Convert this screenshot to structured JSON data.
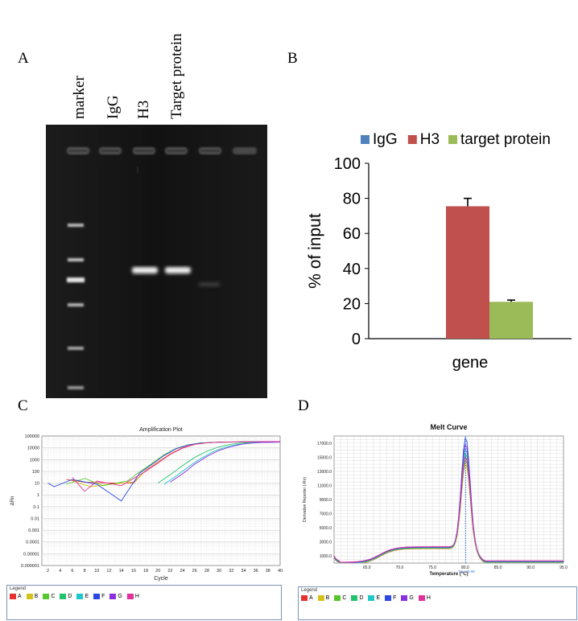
{
  "panels": {
    "a": "A",
    "b": "B",
    "c": "C",
    "d": "D"
  },
  "gel": {
    "lane_labels": [
      "marker",
      "IgG",
      "H3",
      "Target protein"
    ],
    "background": "#141414"
  },
  "chart_data": [
    {
      "type": "bar",
      "panel": "B",
      "categories": [
        "gene"
      ],
      "series": [
        {
          "name": "IgG",
          "values": [
            0
          ],
          "error": [
            0
          ],
          "color": "#4f81bd"
        },
        {
          "name": "H3",
          "values": [
            75.5
          ],
          "error": [
            4.5
          ],
          "color": "#c0504d"
        },
        {
          "name": "target protein",
          "values": [
            21
          ],
          "error": [
            1
          ],
          "color": "#9bbb59"
        }
      ],
      "ylabel": "% of input",
      "ylim": [
        0,
        100
      ],
      "yticks": [
        "0",
        "20",
        "40",
        "60",
        "80",
        "100"
      ],
      "legend": "top",
      "grid": false
    },
    {
      "type": "line",
      "panel": "C",
      "title": "Amplification Plot",
      "xlabel": "Cycle",
      "ylabel": "ΔRn",
      "yscale": "log",
      "xlim": [
        1,
        40
      ],
      "ylim": [
        1e-06,
        100000
      ],
      "xticks": [
        "2",
        "4",
        "6",
        "8",
        "10",
        "12",
        "14",
        "16",
        "18",
        "20",
        "22",
        "24",
        "26",
        "28",
        "30",
        "32",
        "34",
        "36",
        "38",
        "40"
      ],
      "yticks": [
        "100000",
        "10000",
        "1000",
        "100",
        "10",
        "1",
        "0.1",
        "0.01",
        "0.001",
        "0.0001",
        "0.00001",
        "0.000001"
      ],
      "grid": true,
      "series": [
        {
          "name": "A",
          "color": "#e8312f",
          "values": [
            [
              5,
              20
            ],
            [
              8,
              12
            ],
            [
              12,
              10
            ],
            [
              16,
              10
            ],
            [
              18,
              120
            ],
            [
              20,
              600
            ],
            [
              22,
              3000
            ],
            [
              24,
              10000
            ],
            [
              26,
              20000
            ],
            [
              28,
              27000
            ],
            [
              30,
              30000
            ],
            [
              34,
              32000
            ],
            [
              38,
              33000
            ],
            [
              40,
              33000
            ]
          ]
        },
        {
          "name": "B",
          "color": "#d4c21c",
          "values": [
            [
              6,
              15
            ],
            [
              9,
              5
            ],
            [
              12,
              8
            ],
            [
              16,
              12
            ],
            [
              18,
              110
            ],
            [
              20,
              550
            ],
            [
              22,
              2800
            ],
            [
              24,
              9500
            ],
            [
              26,
              19000
            ],
            [
              28,
              26000
            ],
            [
              30,
              29000
            ],
            [
              34,
              31500
            ],
            [
              38,
              32500
            ],
            [
              40,
              32500
            ]
          ]
        },
        {
          "name": "C",
          "color": "#56c82e",
          "values": [
            [
              5,
              8
            ],
            [
              8,
              25
            ],
            [
              11,
              6
            ],
            [
              15,
              15
            ],
            [
              17,
              90
            ],
            [
              19,
              450
            ],
            [
              21,
              2500
            ],
            [
              23,
              9000
            ],
            [
              25,
              18000
            ],
            [
              27,
              26000
            ],
            [
              30,
              30000
            ],
            [
              34,
              32000
            ],
            [
              40,
              33000
            ]
          ]
        },
        {
          "name": "D",
          "color": "#21c46d",
          "values": [
            [
              20,
              10
            ],
            [
              22,
              50
            ],
            [
              24,
              300
            ],
            [
              26,
              1500
            ],
            [
              28,
              5000
            ],
            [
              30,
              12000
            ],
            [
              32,
              20000
            ],
            [
              34,
              26000
            ],
            [
              36,
              29000
            ],
            [
              40,
              31000
            ]
          ]
        },
        {
          "name": "E",
          "color": "#1fc8c8",
          "values": [
            [
              21,
              8
            ],
            [
              23,
              40
            ],
            [
              25,
              250
            ],
            [
              27,
              1200
            ],
            [
              29,
              4500
            ],
            [
              31,
              11000
            ],
            [
              33,
              19000
            ],
            [
              35,
              25000
            ],
            [
              37,
              28000
            ],
            [
              40,
              30000
            ]
          ]
        },
        {
          "name": "F",
          "color": "#2b49e0",
          "values": [
            [
              2,
              10
            ],
            [
              3,
              5
            ],
            [
              6,
              20
            ],
            [
              10,
              8
            ],
            [
              14,
              0.3
            ],
            [
              17,
              70
            ],
            [
              19,
              380
            ],
            [
              21,
              2200
            ],
            [
              23,
              8500
            ],
            [
              25,
              17500
            ],
            [
              27,
              25000
            ],
            [
              30,
              29500
            ],
            [
              35,
              32000
            ],
            [
              40,
              33000
            ]
          ]
        },
        {
          "name": "G",
          "color": "#8b2fe0",
          "values": [
            [
              22,
              12
            ],
            [
              24,
              60
            ],
            [
              26,
              400
            ],
            [
              28,
              1800
            ],
            [
              30,
              6000
            ],
            [
              32,
              13000
            ],
            [
              34,
              21000
            ],
            [
              36,
              27000
            ],
            [
              40,
              30500
            ]
          ]
        },
        {
          "name": "H",
          "color": "#e0309a",
          "values": [
            [
              6,
              30
            ],
            [
              8,
              2
            ],
            [
              10,
              15
            ],
            [
              14,
              6
            ],
            [
              18,
              100
            ],
            [
              20,
              500
            ],
            [
              22,
              2700
            ],
            [
              24,
              9200
            ],
            [
              26,
              19500
            ],
            [
              28,
              26500
            ],
            [
              30,
              29800
            ],
            [
              36,
              32500
            ],
            [
              40,
              33000
            ]
          ]
        }
      ],
      "legend_title": "Legend",
      "legend": [
        "A",
        "B",
        "C",
        "D",
        "E",
        "F",
        "G",
        "H"
      ]
    },
    {
      "type": "line",
      "panel": "D",
      "title": "Melt Curve",
      "xlabel": "Temperature (°C)",
      "ylabel": "Derivative Reporter (-Rn)",
      "xlim": [
        60,
        95
      ],
      "ylim": [
        0,
        18000
      ],
      "xticks": [
        "65.0",
        "70.0",
        "75.0",
        "80.0",
        "85.0",
        "90.0",
        "95.0"
      ],
      "yticks": [
        "1000.0",
        "3000.0",
        "5000.0",
        "7000.0",
        "9000.0",
        "11000.0",
        "13000.0",
        "15000.0",
        "17000.0"
      ],
      "annotation": "Tm: 80.08",
      "grid": true,
      "peak_x": 80.08,
      "series": [
        {
          "name": "A",
          "color": "#e8312f",
          "peak": 15200
        },
        {
          "name": "B",
          "color": "#d4c21c",
          "peak": 14200
        },
        {
          "name": "C",
          "color": "#56c82e",
          "peak": 14700
        },
        {
          "name": "D",
          "color": "#21c46d",
          "peak": 15600
        },
        {
          "name": "E",
          "color": "#1fc8c8",
          "peak": 16200
        },
        {
          "name": "F",
          "color": "#2b49e0",
          "peak": 17800
        },
        {
          "name": "G",
          "color": "#8b2fe0",
          "peak": 16800
        },
        {
          "name": "H",
          "color": "#e0309a",
          "peak": 15000
        }
      ],
      "legend_title": "Legend",
      "legend": [
        "A",
        "B",
        "C",
        "D",
        "E",
        "F",
        "G",
        "H"
      ]
    }
  ]
}
